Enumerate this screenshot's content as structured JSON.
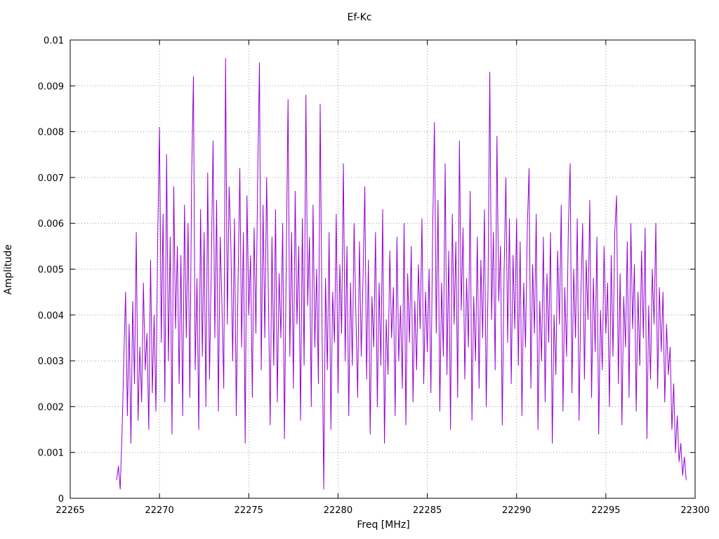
{
  "title": "Ef-Kc",
  "colors": {
    "line": "#9400D3",
    "grid": "#9a9a9a",
    "axis": "#000000",
    "text": "#000000",
    "background": "#ffffff"
  },
  "chart_data": {
    "type": "line",
    "title": "Ef-Kc",
    "xlabel": "Freq [MHz]",
    "ylabel": "Amplitude",
    "xlim": [
      22265,
      22300
    ],
    "ylim": [
      0,
      0.01
    ],
    "xticks": [
      22265,
      22270,
      22275,
      22280,
      22285,
      22290,
      22295,
      22300
    ],
    "yticks": [
      0,
      0.001,
      0.002,
      0.003,
      0.004,
      0.005,
      0.006,
      0.007,
      0.008,
      0.009,
      0.01
    ],
    "grid": true,
    "legend": "none",
    "series_name": "Ef-Kc",
    "x_start": 22267.6,
    "x_step": 0.1,
    "amplitude_scale": 0.0001,
    "values": [
      4,
      7,
      2,
      14,
      30,
      45,
      18,
      38,
      12,
      43,
      25,
      58,
      17,
      33,
      21,
      47,
      28,
      36,
      15,
      52,
      23,
      40,
      19,
      57,
      81,
      34,
      62,
      21,
      75,
      30,
      57,
      14,
      68,
      37,
      55,
      25,
      53,
      18,
      64,
      35,
      60,
      22,
      70,
      92,
      28,
      48,
      15,
      63,
      31,
      58,
      20,
      71,
      26,
      50,
      78,
      35,
      65,
      19,
      57,
      42,
      24,
      96,
      38,
      68,
      55,
      30,
      61,
      18,
      47,
      72,
      33,
      58,
      12,
      66,
      40,
      53,
      22,
      59,
      36,
      70,
      95,
      28,
      64,
      35,
      70,
      44,
      16,
      57,
      29,
      63,
      21,
      49,
      35,
      60,
      13,
      52,
      87,
      31,
      58,
      24,
      67,
      38,
      55,
      17,
      61,
      29,
      88,
      42,
      57,
      20,
      64,
      33,
      50,
      25,
      86,
      39,
      2,
      48,
      28,
      58,
      15,
      45,
      34,
      62,
      23,
      51,
      36,
      73,
      30,
      55,
      18,
      47,
      29,
      60,
      40,
      22,
      56,
      31,
      48,
      68,
      26,
      52,
      14,
      44,
      33,
      58,
      20,
      47,
      29,
      63,
      12,
      39,
      27,
      54,
      35,
      46,
      18,
      57,
      30,
      42,
      24,
      60,
      16,
      49,
      34,
      55,
      21,
      43,
      28,
      51,
      37,
      61,
      25,
      45,
      32,
      50,
      23,
      58,
      82,
      36,
      65,
      19,
      47,
      31,
      73,
      27,
      54,
      15,
      62,
      38,
      56,
      22,
      78,
      41,
      59,
      26,
      48,
      33,
      67,
      17,
      44,
      30,
      57,
      24,
      52,
      35,
      63,
      20,
      46,
      93,
      39,
      58,
      28,
      79,
      43,
      55,
      16,
      49,
      70,
      34,
      61,
      25,
      53,
      37,
      61,
      29,
      56,
      18,
      47,
      33,
      59,
      72,
      24,
      51,
      36,
      62,
      15,
      43,
      30,
      57,
      21,
      49,
      34,
      58,
      12,
      40,
      27,
      54,
      38,
      64,
      19,
      46,
      31,
      59,
      73,
      23,
      50,
      35,
      61,
      17,
      44,
      60,
      26,
      52,
      39,
      65,
      22,
      48,
      32,
      57,
      14,
      41,
      28,
      55,
      36,
      47,
      20,
      53,
      31,
      58,
      66,
      25,
      49,
      16,
      44,
      33,
      56,
      22,
      60,
      37,
      51,
      19,
      45,
      29,
      54,
      35,
      59,
      13,
      42,
      26,
      50,
      38,
      60,
      24,
      46,
      32,
      45,
      21,
      38,
      27,
      33,
      15,
      25,
      10,
      18,
      8,
      12,
      5,
      9,
      4
    ]
  }
}
